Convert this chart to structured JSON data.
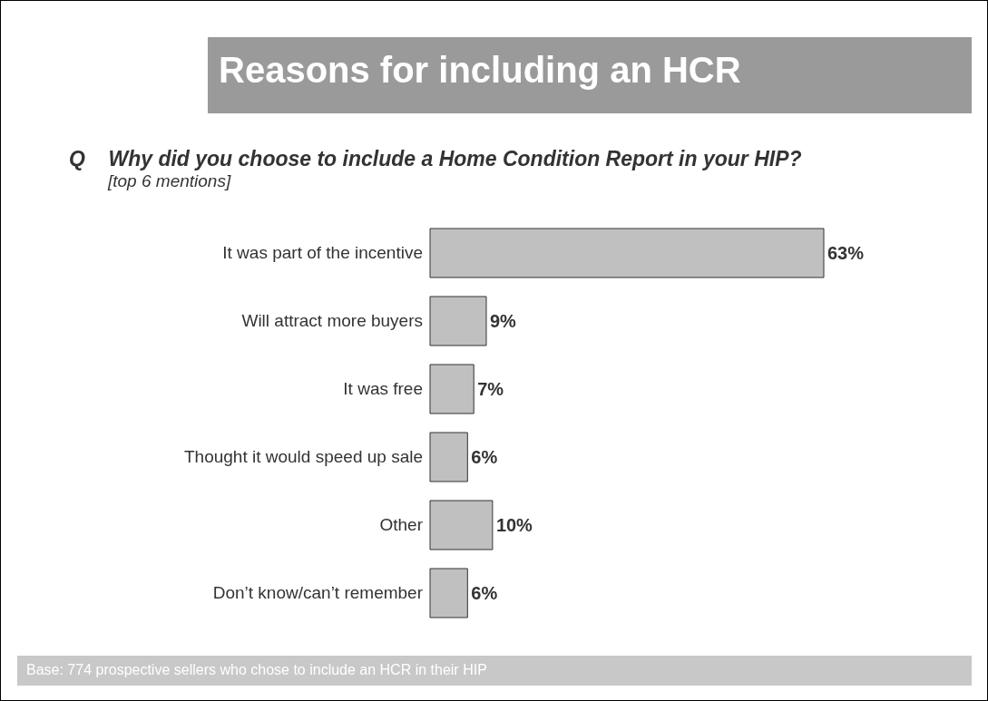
{
  "chart_data": {
    "type": "bar",
    "orientation": "horizontal",
    "title": "Reasons for including an HCR",
    "subtitle": "Q    Why did you choose to include a Home Condition Report in your HIP?",
    "annotations": [
      "[top 6 mentions]",
      "Base: 774 prospective sellers who chose to include an HCR in their HIP"
    ],
    "categories": [
      "It was part of the incentive",
      "Will attract more buyers",
      "It was free",
      "Thought it would speed up sale",
      "Other",
      "Don’t know/can’t remember"
    ],
    "values": [
      63,
      9,
      7,
      6,
      10,
      6
    ],
    "value_labels": [
      "63%",
      "9%",
      "7%",
      "6%",
      "10%",
      "6%"
    ],
    "color": "#c0c0c0"
  }
}
